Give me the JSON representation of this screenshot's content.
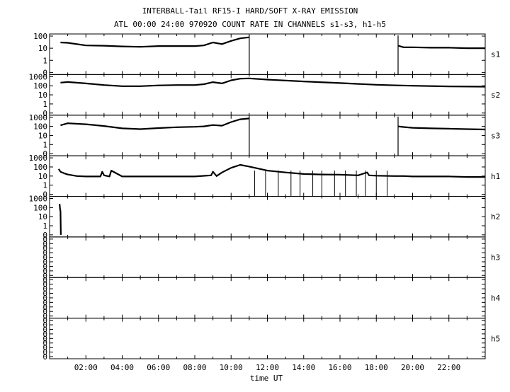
{
  "chart_data": {
    "type": "line",
    "title": "INTERBALL-Tail RF15-I HARD/SOFT X-RAY EMISSION",
    "subtitle": "ATL 00:00 24:00 970920  COUNT RATE IN CHANNELS s1-s3, h1-h5",
    "xlabel": "time UT",
    "xlim": [
      0,
      24
    ],
    "x_unit": "hours UT",
    "x_tick_labels": [
      "02:00",
      "04:00",
      "06:00",
      "08:00",
      "10:00",
      "12:00",
      "14:00",
      "16:00",
      "18:00",
      "20:00",
      "22:00"
    ],
    "y_scale": "log",
    "panels": [
      {
        "name": "s1",
        "y_tick_labels": [
          "100",
          "10",
          "1",
          "0"
        ],
        "segments": [
          {
            "x": [
              0.6,
              1.0,
              2.0,
              3.0,
              4.0,
              5.0,
              6.0,
              7.0,
              8.0,
              8.5,
              9.0,
              9.5,
              10.0,
              10.5,
              11.0
            ],
            "y": [
              30,
              28,
              17,
              16,
              14,
              13,
              15,
              15,
              15,
              17,
              30,
              22,
              40,
              65,
              80
            ]
          },
          {
            "x": [
              19.2,
              19.5,
              20.0,
              21.0,
              22.0,
              23.0,
              24.0
            ],
            "y": [
              16,
              12,
              12,
              11,
              11,
              10,
              10
            ]
          }
        ],
        "gap_edges_x": [
          11.0,
          19.2
        ]
      },
      {
        "name": "s2",
        "y_tick_labels": [
          "1000",
          "100",
          "10",
          "1",
          "0"
        ],
        "segments": [
          {
            "x": [
              0.6,
              1.0,
              2.0,
              3.0,
              4.0,
              5.0,
              6.0,
              7.0,
              8.0,
              8.5,
              9.0,
              9.5,
              10.0,
              10.5,
              11.0,
              12.0,
              14.0,
              16.0,
              18.0,
              19.2,
              20.0,
              22.0,
              24.0
            ],
            "y": [
              220,
              260,
              180,
              120,
              90,
              90,
              110,
              120,
              120,
              150,
              250,
              180,
              400,
              600,
              650,
              480,
              300,
              200,
              130,
              110,
              100,
              85,
              80
            ]
          }
        ]
      },
      {
        "name": "s3",
        "y_tick_labels": [
          "1000",
          "100",
          "10",
          "1",
          "0"
        ],
        "segments": [
          {
            "x": [
              0.6,
              1.0,
              2.0,
              3.0,
              4.0,
              5.0,
              6.0,
              7.0,
              8.0,
              8.5,
              9.0,
              9.5,
              10.0,
              10.5,
              11.0
            ],
            "y": [
              130,
              220,
              170,
              110,
              60,
              50,
              65,
              80,
              90,
              100,
              140,
              120,
              300,
              600,
              750
            ]
          },
          {
            "x": [
              19.2,
              19.5,
              20.0,
              21.0,
              22.0,
              23.0,
              24.0
            ],
            "y": [
              100,
              85,
              70,
              60,
              55,
              50,
              45
            ]
          }
        ],
        "gap_edges_x": [
          11.0,
          19.2
        ]
      },
      {
        "name": "h1",
        "y_tick_labels": [
          "1000",
          "100",
          "10",
          "1",
          "0"
        ],
        "segments": [
          {
            "x": [
              0.5,
              0.6,
              0.8,
              1.0,
              1.5,
              2.0,
              2.8,
              2.9,
              3.0,
              3.3,
              3.4,
              4.0,
              5.0,
              6.0,
              7.0,
              8.0,
              8.9,
              9.0,
              9.2,
              9.5,
              10.0,
              10.5,
              11.0,
              12.0,
              13.0,
              14.0,
              15.0,
              16.0,
              17.0,
              17.5,
              17.6,
              18.0,
              19.0,
              19.5,
              20.0,
              21.0,
              22.0,
              23.0,
              24.0
            ],
            "y": [
              60,
              30,
              20,
              15,
              10,
              9,
              9,
              30,
              12,
              9,
              40,
              9,
              9,
              9,
              9,
              9,
              12,
              30,
              10,
              25,
              80,
              170,
              110,
              40,
              25,
              17,
              15,
              14,
              12,
              25,
              12,
              11,
              10,
              10,
              9,
              9,
              9,
              8,
              8
            ]
          }
        ],
        "drop_x": [
          11.3,
          11.9,
          12.6,
          13.3,
          13.8,
          14.5,
          15.0,
          15.7,
          16.3,
          16.9,
          17.4,
          18.0,
          18.6
        ]
      },
      {
        "name": "h2",
        "y_tick_labels": [
          "1000",
          "100",
          "10",
          "1",
          "0"
        ],
        "segments": [
          {
            "x": [
              0.55,
              0.58,
              0.6,
              0.62
            ],
            "y": [
              250,
              60,
              40,
              0
            ]
          }
        ]
      },
      {
        "name": "h3",
        "y_tick_labels": [
          "0",
          "0",
          "0",
          "0",
          "0",
          "0",
          "0",
          "0",
          "0"
        ],
        "segments": []
      },
      {
        "name": "h4",
        "y_tick_labels": [
          "0",
          "0",
          "0",
          "0",
          "0",
          "0",
          "0",
          "0",
          "0"
        ],
        "segments": []
      },
      {
        "name": "h5",
        "y_tick_labels": [
          "0",
          "0",
          "0",
          "0",
          "0",
          "0",
          "0",
          "0",
          "0"
        ],
        "segments": []
      }
    ]
  }
}
